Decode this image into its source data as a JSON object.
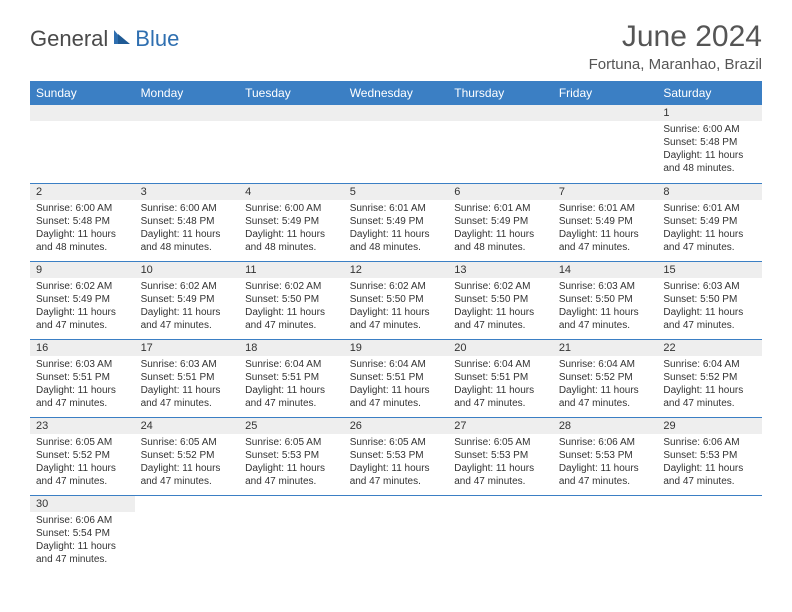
{
  "brand": {
    "part1": "General",
    "part2": "Blue"
  },
  "title": "June 2024",
  "location": "Fortuna, Maranhao, Brazil",
  "colors": {
    "header_bg": "#3b7fc4",
    "header_fg": "#ffffff",
    "daynum_bg": "#eeeeee",
    "border": "#3b7fc4",
    "text": "#333333",
    "title_color": "#555555",
    "logo_gray": "#4a4a4a",
    "logo_blue": "#2f6fb0"
  },
  "weekdays": [
    "Sunday",
    "Monday",
    "Tuesday",
    "Wednesday",
    "Thursday",
    "Friday",
    "Saturday"
  ],
  "weeks": [
    [
      null,
      null,
      null,
      null,
      null,
      null,
      {
        "n": "1",
        "sr": "6:00 AM",
        "ss": "5:48 PM",
        "dl": "11 hours and 48 minutes."
      }
    ],
    [
      {
        "n": "2",
        "sr": "6:00 AM",
        "ss": "5:48 PM",
        "dl": "11 hours and 48 minutes."
      },
      {
        "n": "3",
        "sr": "6:00 AM",
        "ss": "5:48 PM",
        "dl": "11 hours and 48 minutes."
      },
      {
        "n": "4",
        "sr": "6:00 AM",
        "ss": "5:49 PM",
        "dl": "11 hours and 48 minutes."
      },
      {
        "n": "5",
        "sr": "6:01 AM",
        "ss": "5:49 PM",
        "dl": "11 hours and 48 minutes."
      },
      {
        "n": "6",
        "sr": "6:01 AM",
        "ss": "5:49 PM",
        "dl": "11 hours and 48 minutes."
      },
      {
        "n": "7",
        "sr": "6:01 AM",
        "ss": "5:49 PM",
        "dl": "11 hours and 47 minutes."
      },
      {
        "n": "8",
        "sr": "6:01 AM",
        "ss": "5:49 PM",
        "dl": "11 hours and 47 minutes."
      }
    ],
    [
      {
        "n": "9",
        "sr": "6:02 AM",
        "ss": "5:49 PM",
        "dl": "11 hours and 47 minutes."
      },
      {
        "n": "10",
        "sr": "6:02 AM",
        "ss": "5:49 PM",
        "dl": "11 hours and 47 minutes."
      },
      {
        "n": "11",
        "sr": "6:02 AM",
        "ss": "5:50 PM",
        "dl": "11 hours and 47 minutes."
      },
      {
        "n": "12",
        "sr": "6:02 AM",
        "ss": "5:50 PM",
        "dl": "11 hours and 47 minutes."
      },
      {
        "n": "13",
        "sr": "6:02 AM",
        "ss": "5:50 PM",
        "dl": "11 hours and 47 minutes."
      },
      {
        "n": "14",
        "sr": "6:03 AM",
        "ss": "5:50 PM",
        "dl": "11 hours and 47 minutes."
      },
      {
        "n": "15",
        "sr": "6:03 AM",
        "ss": "5:50 PM",
        "dl": "11 hours and 47 minutes."
      }
    ],
    [
      {
        "n": "16",
        "sr": "6:03 AM",
        "ss": "5:51 PM",
        "dl": "11 hours and 47 minutes."
      },
      {
        "n": "17",
        "sr": "6:03 AM",
        "ss": "5:51 PM",
        "dl": "11 hours and 47 minutes."
      },
      {
        "n": "18",
        "sr": "6:04 AM",
        "ss": "5:51 PM",
        "dl": "11 hours and 47 minutes."
      },
      {
        "n": "19",
        "sr": "6:04 AM",
        "ss": "5:51 PM",
        "dl": "11 hours and 47 minutes."
      },
      {
        "n": "20",
        "sr": "6:04 AM",
        "ss": "5:51 PM",
        "dl": "11 hours and 47 minutes."
      },
      {
        "n": "21",
        "sr": "6:04 AM",
        "ss": "5:52 PM",
        "dl": "11 hours and 47 minutes."
      },
      {
        "n": "22",
        "sr": "6:04 AM",
        "ss": "5:52 PM",
        "dl": "11 hours and 47 minutes."
      }
    ],
    [
      {
        "n": "23",
        "sr": "6:05 AM",
        "ss": "5:52 PM",
        "dl": "11 hours and 47 minutes."
      },
      {
        "n": "24",
        "sr": "6:05 AM",
        "ss": "5:52 PM",
        "dl": "11 hours and 47 minutes."
      },
      {
        "n": "25",
        "sr": "6:05 AM",
        "ss": "5:53 PM",
        "dl": "11 hours and 47 minutes."
      },
      {
        "n": "26",
        "sr": "6:05 AM",
        "ss": "5:53 PM",
        "dl": "11 hours and 47 minutes."
      },
      {
        "n": "27",
        "sr": "6:05 AM",
        "ss": "5:53 PM",
        "dl": "11 hours and 47 minutes."
      },
      {
        "n": "28",
        "sr": "6:06 AM",
        "ss": "5:53 PM",
        "dl": "11 hours and 47 minutes."
      },
      {
        "n": "29",
        "sr": "6:06 AM",
        "ss": "5:53 PM",
        "dl": "11 hours and 47 minutes."
      }
    ],
    [
      {
        "n": "30",
        "sr": "6:06 AM",
        "ss": "5:54 PM",
        "dl": "11 hours and 47 minutes."
      },
      null,
      null,
      null,
      null,
      null,
      null
    ]
  ],
  "labels": {
    "sunrise": "Sunrise:",
    "sunset": "Sunset:",
    "daylight": "Daylight:"
  }
}
